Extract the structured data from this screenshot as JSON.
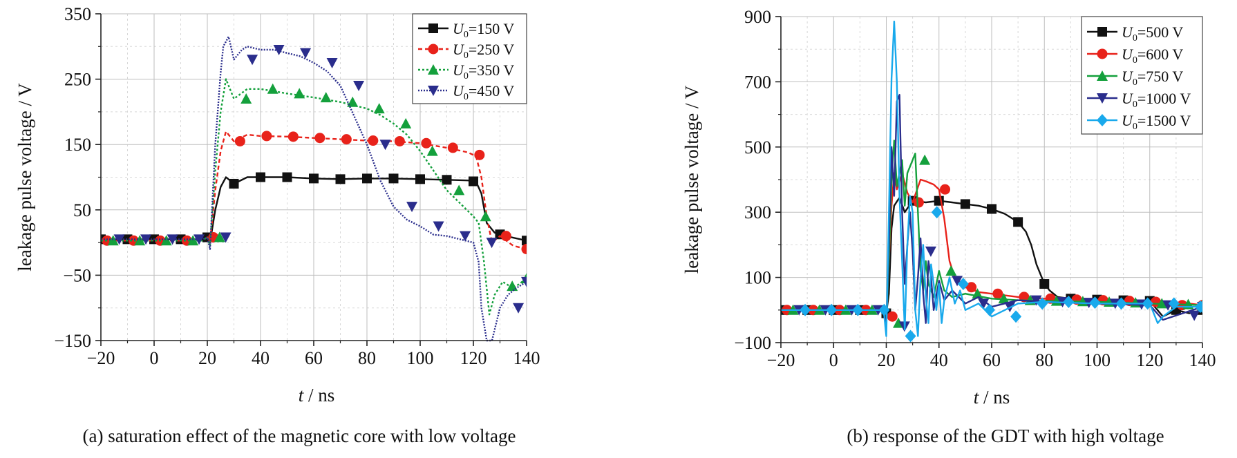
{
  "chart_data": [
    {
      "type": "line",
      "caption": "(a) saturation effect of the magnetic core with low voltage",
      "xlabel_var": "t",
      "xlabel_unit": " / ns",
      "ylabel": "leakage pulse voltage / V",
      "xlim": [
        -20,
        140
      ],
      "ylim": [
        -150,
        350
      ],
      "xticks": [
        -20,
        0,
        20,
        40,
        60,
        80,
        100,
        120,
        140
      ],
      "yticks": [
        -150,
        -50,
        50,
        150,
        250,
        350
      ],
      "grid": true,
      "legend_position": "top-right",
      "series": [
        {
          "name": "=150 V",
          "legend_var": "U",
          "legend_sub": "0",
          "color": "#111111",
          "dash": "",
          "marker": "square",
          "x": [
            -20,
            0,
            18,
            20,
            21,
            23,
            25,
            27,
            30,
            35,
            40,
            50,
            60,
            70,
            80,
            90,
            100,
            110,
            118,
            121,
            123,
            125,
            128,
            132,
            140
          ],
          "y": [
            5,
            5,
            5,
            8,
            0,
            50,
            85,
            100,
            90,
            100,
            100,
            100,
            98,
            97,
            98,
            98,
            97,
            96,
            95,
            93,
            75,
            30,
            15,
            10,
            3
          ]
        },
        {
          "name": "=250 V",
          "legend_var": "U",
          "legend_sub": "0",
          "color": "#e8221a",
          "dash": "6,4",
          "marker": "circle",
          "x": [
            -20,
            0,
            18,
            20,
            21,
            23,
            25,
            27,
            30,
            35,
            40,
            50,
            60,
            70,
            80,
            90,
            100,
            110,
            118,
            121,
            123,
            125,
            127,
            130,
            135,
            140
          ],
          "y": [
            3,
            3,
            3,
            8,
            0,
            80,
            140,
            170,
            155,
            165,
            163,
            162,
            160,
            158,
            156,
            155,
            152,
            145,
            138,
            132,
            100,
            40,
            0,
            10,
            -5,
            -10
          ]
        },
        {
          "name": "=350 V",
          "legend_var": "U",
          "legend_sub": "0",
          "color": "#14a03c",
          "dash": "3,3",
          "marker": "triangle",
          "x": [
            -20,
            0,
            18,
            20,
            21,
            23,
            25,
            27,
            30,
            35,
            40,
            50,
            60,
            70,
            80,
            85,
            90,
            95,
            100,
            105,
            110,
            115,
            120,
            122,
            124,
            126,
            128,
            131,
            135,
            140
          ],
          "y": [
            3,
            3,
            3,
            8,
            -5,
            110,
            200,
            250,
            220,
            235,
            235,
            228,
            222,
            215,
            205,
            195,
            182,
            165,
            140,
            110,
            80,
            60,
            40,
            30,
            -30,
            -110,
            -80,
            -60,
            -70,
            -55
          ]
        },
        {
          "name": "=450 V",
          "legend_var": "U",
          "legend_sub": "0",
          "color": "#2a2d8c",
          "dash": "2,2",
          "marker": "triangle-down",
          "x": [
            -20,
            0,
            18,
            20,
            21,
            23,
            25,
            26,
            28,
            30,
            33,
            35,
            40,
            45,
            50,
            55,
            60,
            65,
            70,
            75,
            80,
            85,
            90,
            95,
            100,
            105,
            110,
            115,
            120,
            122,
            123,
            125,
            127,
            130,
            133,
            136,
            140
          ],
          "y": [
            5,
            5,
            5,
            8,
            -10,
            150,
            260,
            300,
            315,
            280,
            295,
            300,
            295,
            295,
            290,
            285,
            275,
            262,
            240,
            195,
            150,
            95,
            55,
            35,
            25,
            12,
            10,
            5,
            0,
            -30,
            -100,
            -150,
            -150,
            -100,
            -80,
            -70,
            -60
          ]
        }
      ]
    },
    {
      "type": "line",
      "caption": "(b) response of the GDT with high voltage",
      "xlabel_var": "t",
      "xlabel_unit": " / ns",
      "ylabel": "leakage pulse voltage / V",
      "xlim": [
        -20,
        140
      ],
      "ylim": [
        -100,
        900
      ],
      "xticks": [
        -20,
        0,
        20,
        40,
        60,
        80,
        100,
        120,
        140
      ],
      "yticks": [
        -100,
        100,
        300,
        500,
        700,
        900
      ],
      "grid": true,
      "legend_position": "top-right",
      "series": [
        {
          "name": "=500 V",
          "legend_var": "U",
          "legend_sub": "0",
          "color": "#111111",
          "dash": "",
          "marker": "square",
          "x": [
            -20,
            0,
            19,
            20,
            21,
            22,
            23,
            25,
            27,
            30,
            35,
            40,
            45,
            50,
            55,
            60,
            65,
            70,
            73,
            75,
            77,
            80,
            82,
            85,
            90,
            100,
            110,
            120,
            125,
            130,
            135,
            140
          ],
          "y": [
            0,
            0,
            0,
            -10,
            50,
            250,
            320,
            345,
            300,
            335,
            330,
            335,
            330,
            325,
            320,
            310,
            295,
            270,
            240,
            200,
            140,
            80,
            60,
            40,
            35,
            32,
            30,
            28,
            -20,
            0,
            -10,
            0
          ]
        },
        {
          "name": "=600 V",
          "legend_var": "U",
          "legend_sub": "0",
          "color": "#e8221a",
          "dash": "",
          "marker": "circle",
          "x": [
            -20,
            0,
            19,
            20,
            21,
            22,
            23,
            24,
            26,
            28,
            30,
            33,
            35,
            38,
            40,
            42,
            44,
            46,
            50,
            55,
            60,
            70,
            80,
            90,
            100,
            110,
            120,
            125,
            130,
            135,
            140
          ],
          "y": [
            0,
            0,
            0,
            -20,
            150,
            320,
            420,
            370,
            420,
            360,
            330,
            400,
            395,
            385,
            370,
            280,
            150,
            100,
            70,
            55,
            50,
            40,
            35,
            32,
            30,
            28,
            25,
            10,
            15,
            20,
            15
          ]
        },
        {
          "name": "=750 V",
          "legend_var": "U",
          "legend_sub": "0",
          "color": "#14a03c",
          "dash": "",
          "marker": "triangle",
          "x": [
            -20,
            0,
            19,
            20,
            21,
            22,
            23,
            24,
            26,
            27,
            28,
            30,
            31,
            32,
            33,
            34,
            35,
            36,
            38,
            40,
            42,
            45,
            50,
            60,
            70,
            80,
            100,
            120,
            140
          ],
          "y": [
            0,
            0,
            0,
            -40,
            150,
            400,
            520,
            380,
            460,
            320,
            420,
            460,
            480,
            300,
            120,
            60,
            150,
            80,
            40,
            120,
            60,
            40,
            50,
            35,
            30,
            28,
            25,
            20,
            15
          ]
        },
        {
          "name": "=1000 V",
          "legend_var": "U",
          "legend_sub": "0",
          "color": "#2a2d8c",
          "dash": "",
          "marker": "triangle-down",
          "x": [
            -20,
            0,
            19,
            20,
            21,
            22,
            23,
            24,
            25,
            26,
            27,
            28,
            29,
            30,
            31,
            32,
            33,
            34,
            35,
            36,
            37,
            38,
            40,
            42,
            45,
            50,
            55,
            60,
            70,
            80,
            100,
            120,
            125,
            140
          ],
          "y": [
            0,
            0,
            0,
            -50,
            200,
            500,
            350,
            640,
            660,
            300,
            80,
            200,
            300,
            180,
            0,
            100,
            220,
            50,
            -40,
            150,
            100,
            0,
            90,
            30,
            60,
            20,
            40,
            10,
            30,
            25,
            20,
            15,
            -30,
            10
          ]
        },
        {
          "name": "=1500 V",
          "legend_var": "U",
          "legend_sub": "0",
          "color": "#19a9ec",
          "dash": "",
          "marker": "diamond",
          "x": [
            -20,
            0,
            19,
            20,
            21,
            22,
            23,
            24,
            25,
            26,
            27,
            28,
            29,
            30,
            31,
            32,
            33,
            34,
            35,
            36,
            37,
            38,
            39,
            40,
            41,
            42,
            44,
            46,
            48,
            50,
            55,
            60,
            70,
            80,
            100,
            120,
            123,
            125,
            130,
            140
          ],
          "y": [
            0,
            0,
            0,
            -80,
            300,
            710,
            885,
            700,
            350,
            150,
            -60,
            200,
            350,
            300,
            0,
            -80,
            100,
            200,
            40,
            -40,
            140,
            80,
            0,
            80,
            -40,
            30,
            100,
            20,
            60,
            0,
            20,
            -20,
            20,
            25,
            20,
            20,
            -40,
            -20,
            10,
            10
          ]
        }
      ]
    }
  ]
}
